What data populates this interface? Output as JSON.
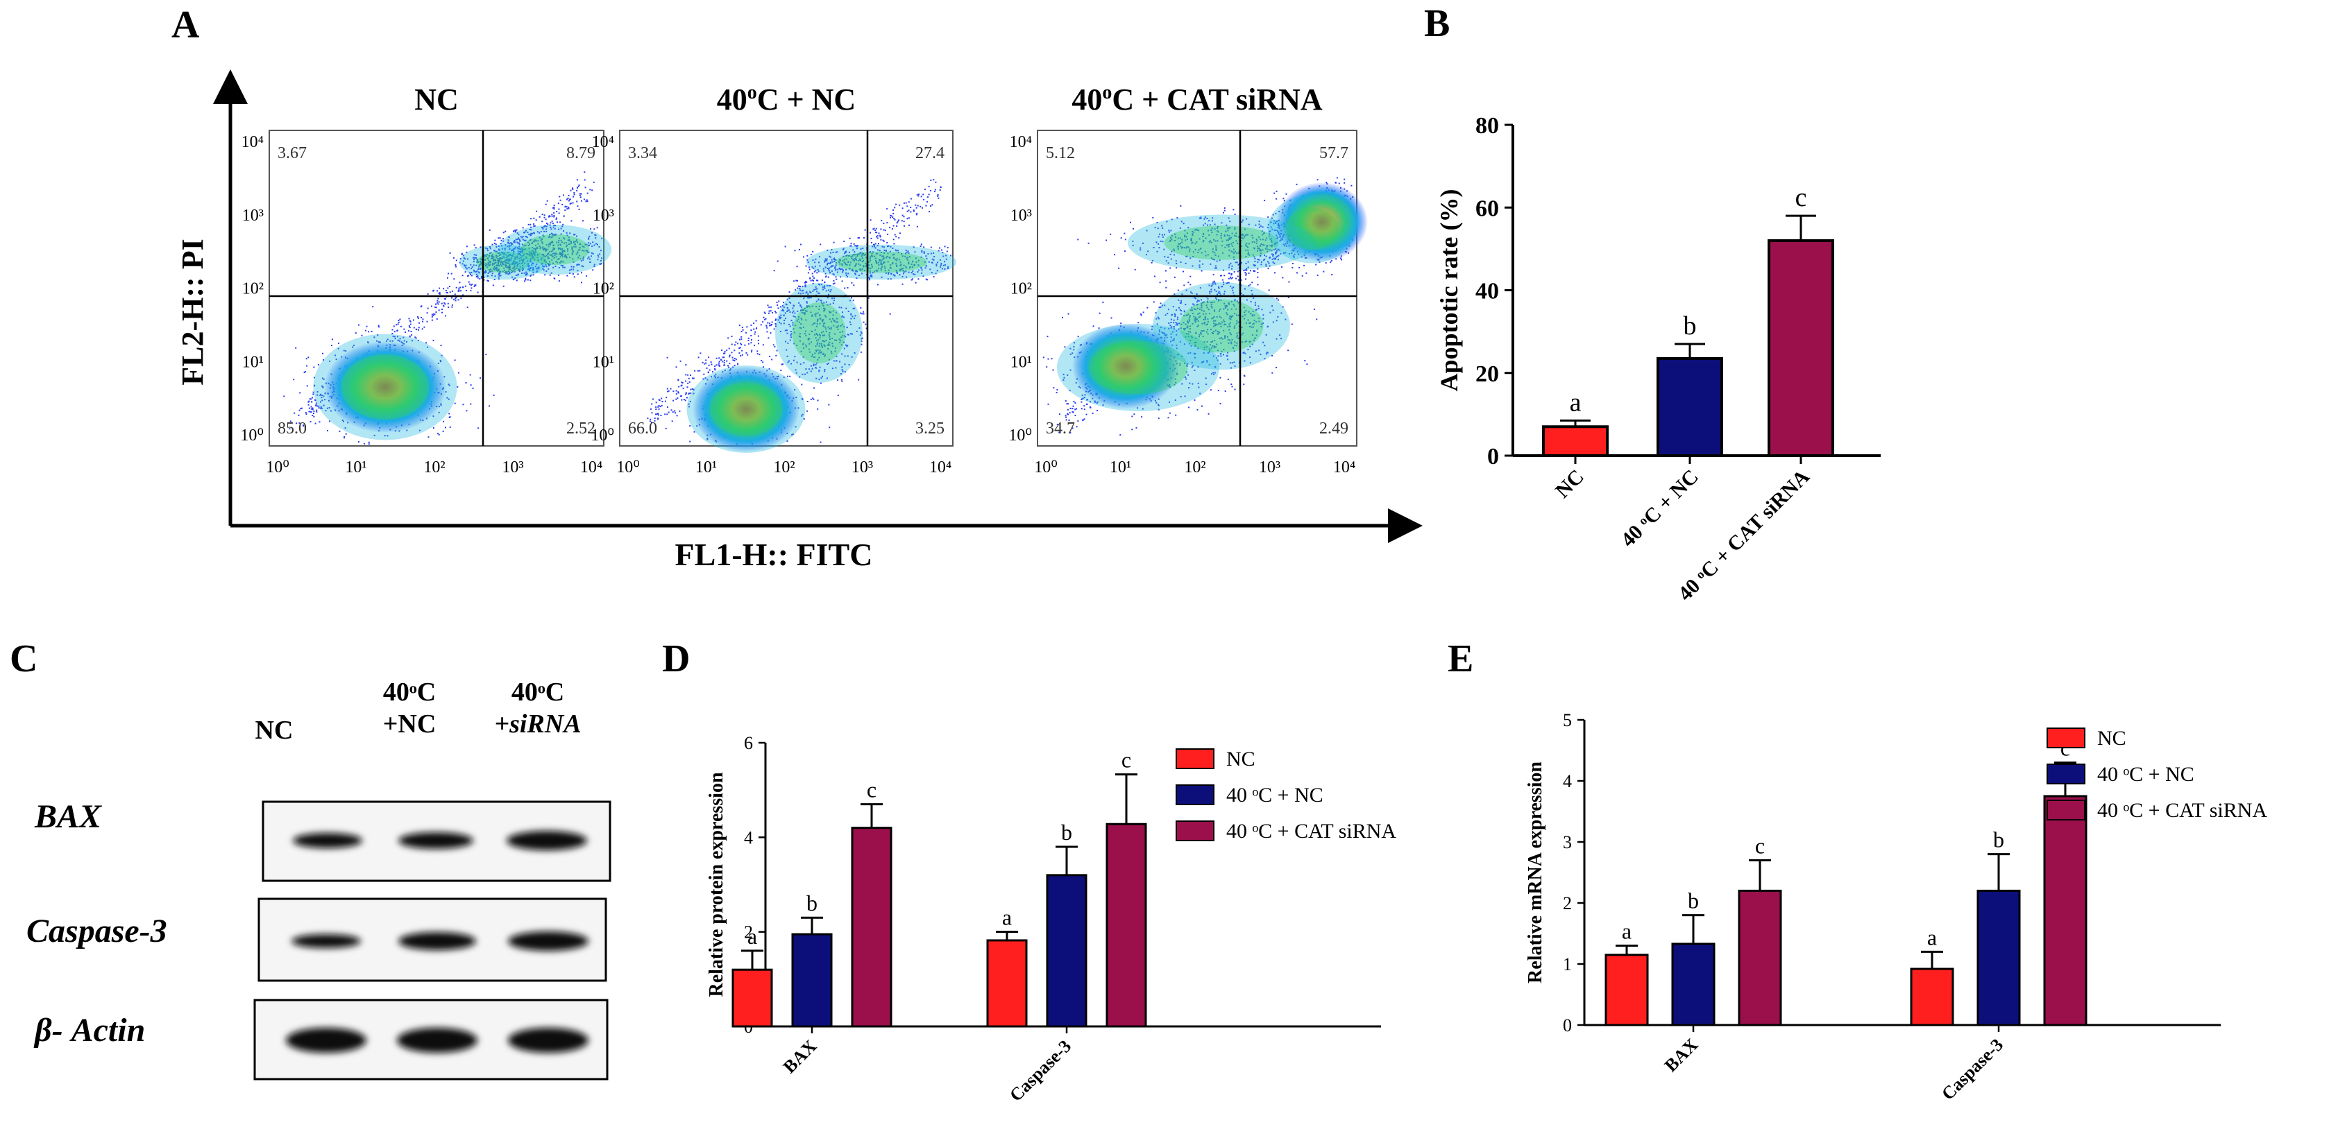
{
  "panels": {
    "a": "A",
    "b": "B",
    "c": "C",
    "d": "D",
    "e": "E"
  },
  "colors": {
    "nc": "#ff1f1f",
    "heat_nc": "#0c0f7a",
    "heat_sirna": "#9b0f4b"
  },
  "flow": {
    "y_axis_label": "FL2-H:: PI",
    "x_axis_label": "FL1-H:: FITC",
    "tick_labels": [
      "10⁰",
      "10¹",
      "10²",
      "10³",
      "10⁴"
    ],
    "plots": [
      {
        "title_main": "NC",
        "title_sup": "",
        "title_rest": "",
        "q_ul": "3.67",
        "q_ur": "8.79",
        "q_ll": "85.0",
        "q_lr": "2.52"
      },
      {
        "title_main": "40",
        "title_sup": "o",
        "title_rest": "C + NC",
        "q_ul": "3.34",
        "q_ur": "27.4",
        "q_ll": "66.0",
        "q_lr": "3.25"
      },
      {
        "title_main": "40",
        "title_sup": "o",
        "title_rest": "C + CAT siRNA",
        "q_ul": "5.12",
        "q_ur": "57.7",
        "q_ll": "34.7",
        "q_lr": "2.49"
      }
    ]
  },
  "western": {
    "columns": [
      {
        "line1": "NC",
        "line2": ""
      },
      {
        "line1": "40ᵒC",
        "line2": "+NC"
      },
      {
        "line1": "40ᵒC",
        "line2": "+siRNA"
      }
    ],
    "rows": [
      "BAX",
      "Caspase-3",
      "β- Actin"
    ]
  },
  "chart_data": [
    {
      "panel": "B",
      "type": "bar",
      "categories": [
        "NC",
        "40 ᵒC + NC",
        "40 ᵒC + CAT siRNA"
      ],
      "values": [
        7,
        23.5,
        52
      ],
      "errors": [
        1.5,
        3.5,
        6
      ],
      "letters": [
        "a",
        "b",
        "c"
      ],
      "ylabel": "Apoptotic rate (%)",
      "ylim": [
        0,
        80
      ],
      "yticks": [
        0,
        20,
        40,
        60,
        80
      ],
      "grid": false
    },
    {
      "panel": "D",
      "type": "bar",
      "categories": [
        "BAX",
        "Caspase-3"
      ],
      "series": [
        {
          "name": "NC",
          "values": [
            1.2,
            1.82
          ],
          "errors": [
            0.4,
            0.18
          ],
          "letters": [
            "a",
            "a"
          ]
        },
        {
          "name": "40 ᵒC + NC",
          "values": [
            1.95,
            3.2
          ],
          "errors": [
            0.35,
            0.6
          ],
          "letters": [
            "b",
            "b"
          ]
        },
        {
          "name": "40 ᵒC + CAT siRNA",
          "values": [
            4.2,
            4.28
          ],
          "errors": [
            0.5,
            1.05
          ],
          "letters": [
            "c",
            "c"
          ]
        }
      ],
      "ylabel": "Relative protein expression",
      "ylim": [
        0,
        6
      ],
      "yticks": [
        0,
        2,
        4,
        6
      ],
      "legend": "top-right",
      "grid": false
    },
    {
      "panel": "E",
      "type": "bar",
      "categories": [
        "BAX",
        "Caspase-3"
      ],
      "series": [
        {
          "name": "NC",
          "values": [
            1.15,
            0.92
          ],
          "errors": [
            0.15,
            0.28
          ],
          "letters": [
            "a",
            "a"
          ]
        },
        {
          "name": "40 ᵒC + NC",
          "values": [
            1.33,
            2.2
          ],
          "errors": [
            0.47,
            0.6
          ],
          "letters": [
            "b",
            "b"
          ]
        },
        {
          "name": "40 ᵒC + CAT siRNA",
          "values": [
            2.2,
            3.75
          ],
          "errors": [
            0.5,
            0.55
          ],
          "letters": [
            "c",
            "c"
          ]
        }
      ],
      "ylabel": "Relative mRNA expression",
      "ylim": [
        0,
        5
      ],
      "yticks": [
        0,
        1,
        2,
        3,
        4,
        5
      ],
      "legend": "top-right",
      "grid": false
    }
  ]
}
